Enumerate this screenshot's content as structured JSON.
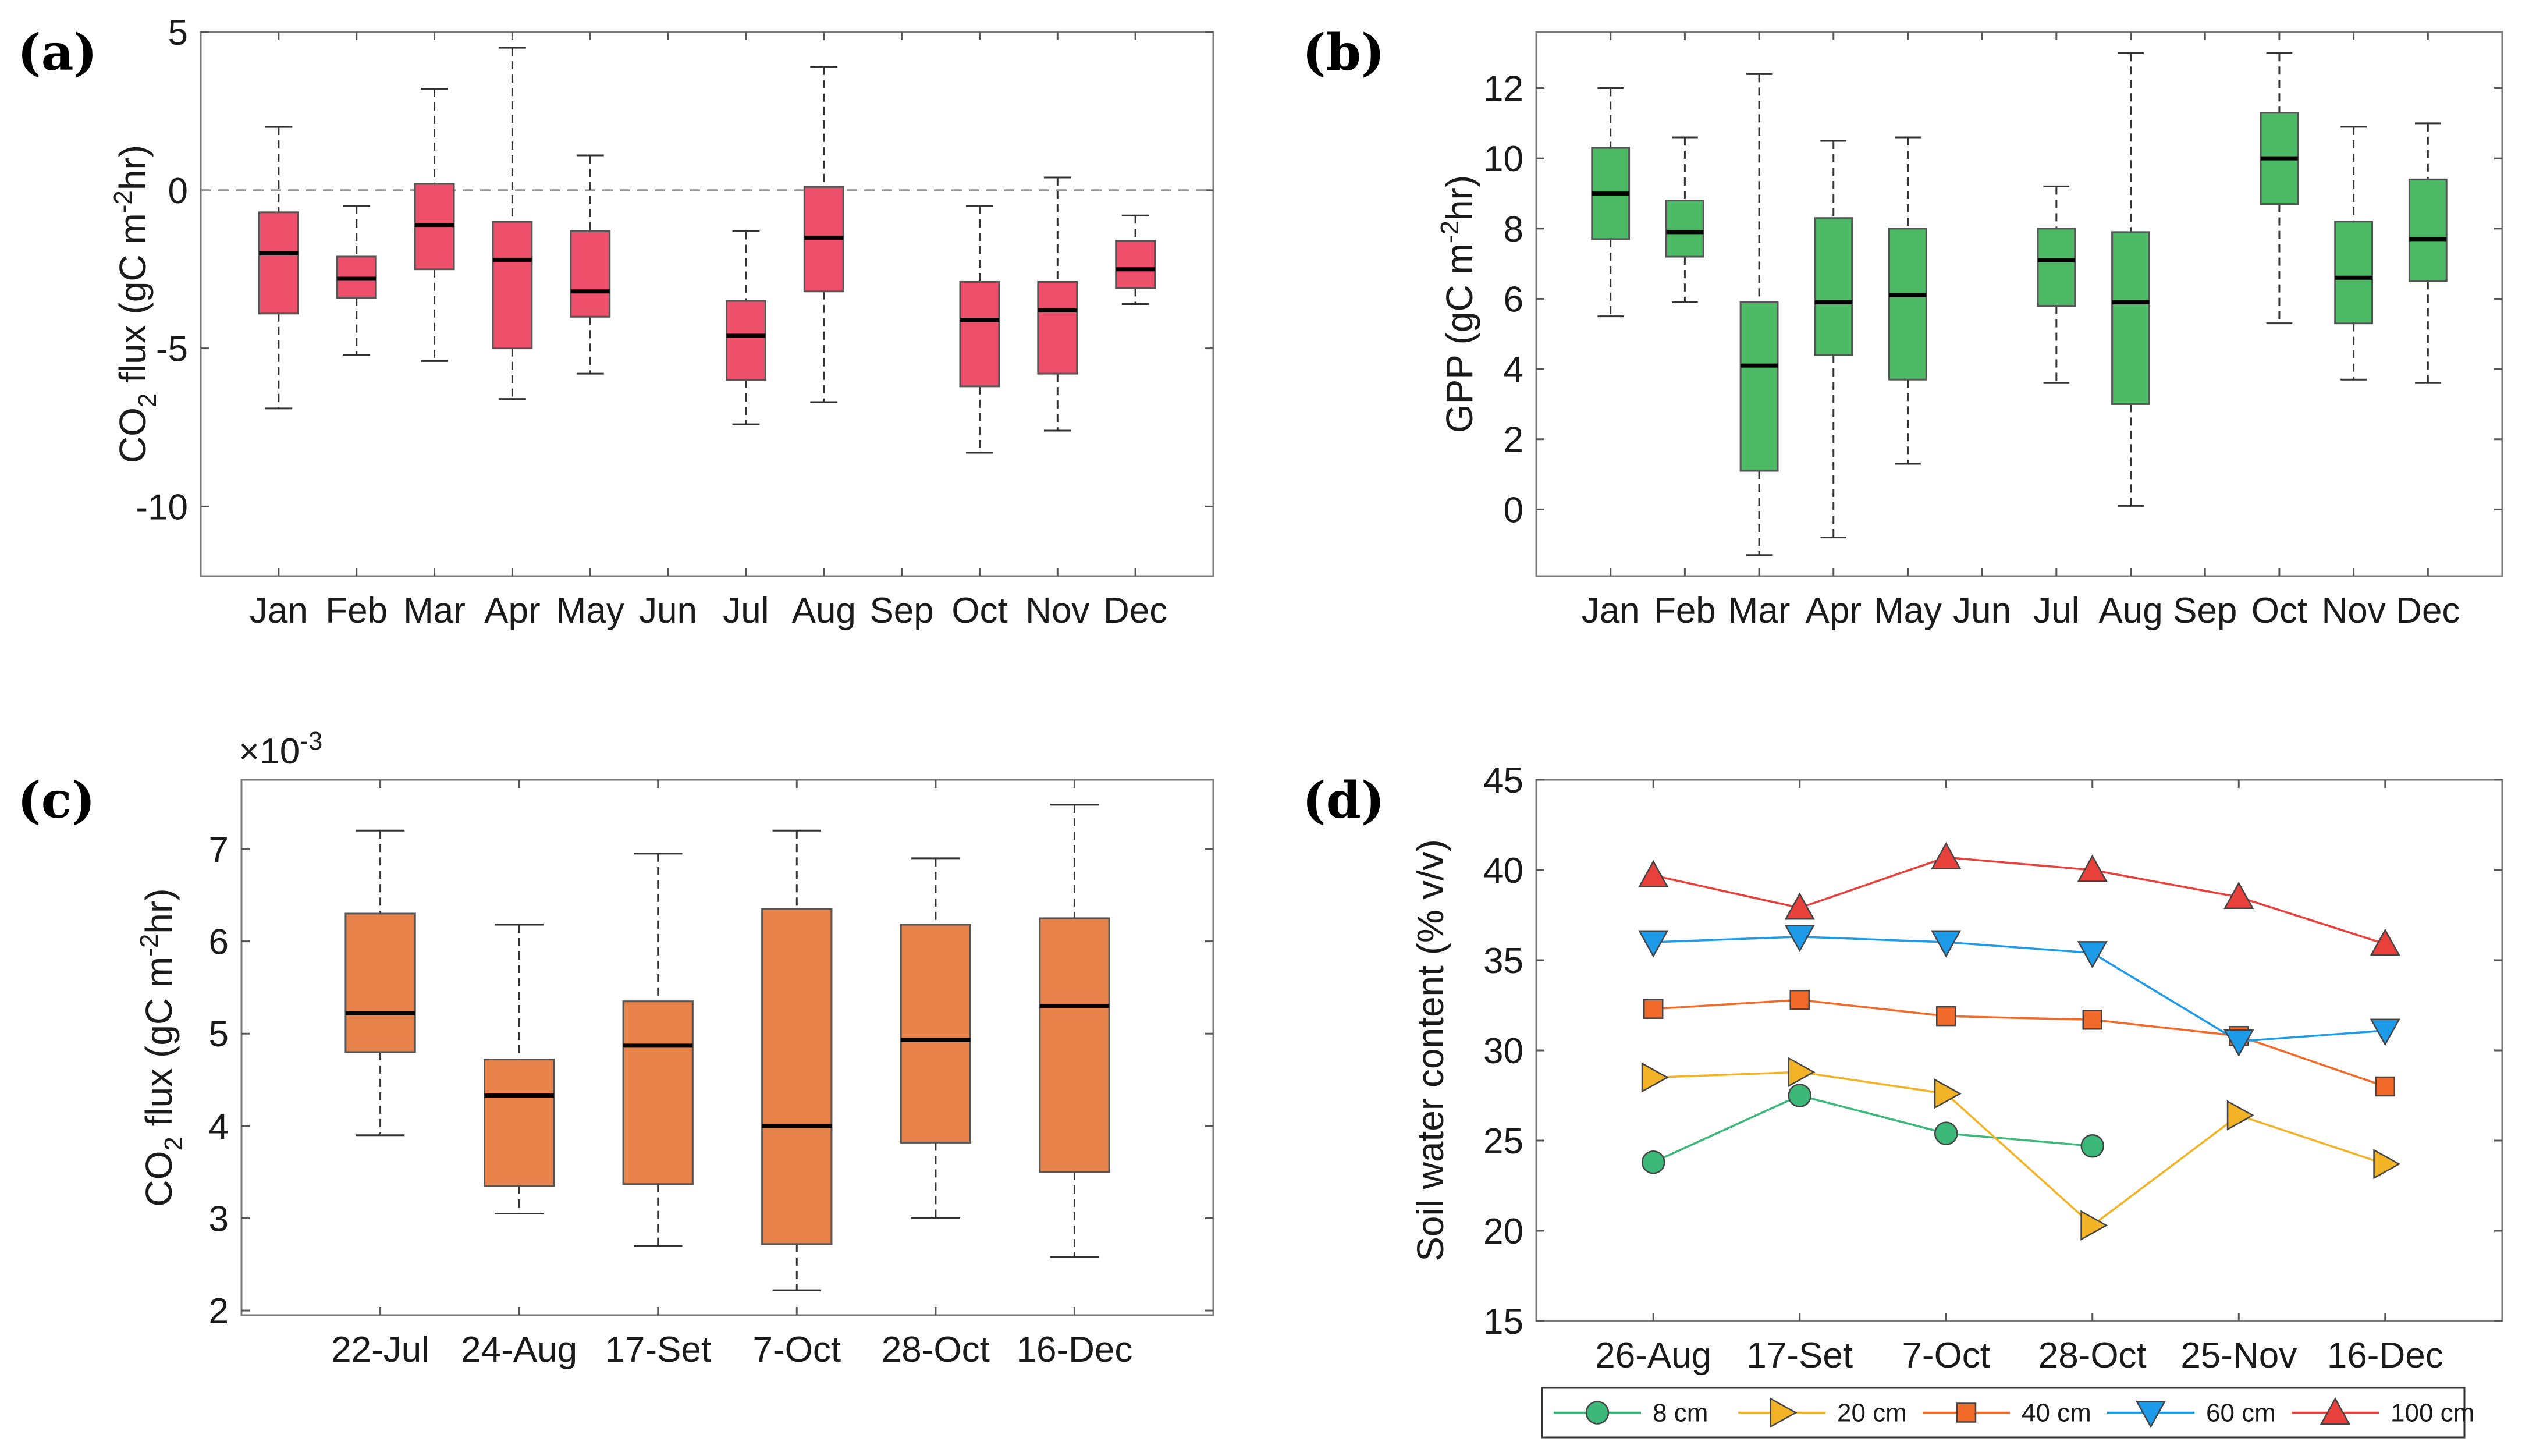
{
  "chart_data": [
    {
      "id": "a",
      "panel_label": "(a)",
      "type": "box",
      "ylabel_pre": "CO",
      "ylabel_sub": "2",
      "ylabel_mid": " flux (gC m",
      "ylabel_sup": "-2",
      "ylabel_post": "hr)",
      "categories": [
        "Jan",
        "Feb",
        "Mar",
        "Apr",
        "May",
        "Jun",
        "Jul",
        "Aug",
        "Sep",
        "Oct",
        "Nov",
        "Dec"
      ],
      "ylim": [
        -12.2,
        5
      ],
      "yticks": [
        5,
        0,
        -5,
        -10
      ],
      "ytick_labels": [
        "5",
        "0",
        "-5",
        "-10"
      ],
      "reference_line": 0,
      "color": "#ee4f6a",
      "boxes": [
        {
          "cat": "Jan",
          "min": -6.9,
          "q1": -3.9,
          "median": -2.0,
          "q3": -0.7,
          "max": 2.0
        },
        {
          "cat": "Feb",
          "min": -5.2,
          "q1": -3.4,
          "median": -2.8,
          "q3": -2.1,
          "max": -0.5
        },
        {
          "cat": "Mar",
          "min": -5.4,
          "q1": -2.5,
          "median": -1.1,
          "q3": 0.2,
          "max": 3.2
        },
        {
          "cat": "Apr",
          "min": -6.6,
          "q1": -5.0,
          "median": -2.2,
          "q3": -1.0,
          "max": 4.5
        },
        {
          "cat": "May",
          "min": -5.8,
          "q1": -4.0,
          "median": -3.2,
          "q3": -1.3,
          "max": 1.1
        },
        {
          "cat": "Jul",
          "min": -7.4,
          "q1": -6.0,
          "median": -4.6,
          "q3": -3.5,
          "max": -1.3
        },
        {
          "cat": "Aug",
          "min": -6.7,
          "q1": -3.2,
          "median": -1.5,
          "q3": 0.1,
          "max": 3.9
        },
        {
          "cat": "Oct",
          "min": -8.3,
          "q1": -6.2,
          "median": -4.1,
          "q3": -2.9,
          "max": -0.5
        },
        {
          "cat": "Nov",
          "min": -7.6,
          "q1": -5.8,
          "median": -3.8,
          "q3": -2.9,
          "max": 0.4
        },
        {
          "cat": "Dec",
          "min": -3.6,
          "q1": -3.1,
          "median": -2.5,
          "q3": -1.6,
          "max": -0.8
        }
      ]
    },
    {
      "id": "b",
      "panel_label": "(b)",
      "type": "box",
      "ylabel_pre": "GPP (gC m",
      "ylabel_sup": "-2",
      "ylabel_post": "hr)",
      "categories": [
        "Jan",
        "Feb",
        "Mar",
        "Apr",
        "May",
        "Jun",
        "Jul",
        "Aug",
        "Sep",
        "Oct",
        "Nov",
        "Dec"
      ],
      "ylim": [
        -1.9,
        13.6
      ],
      "yticks": [
        12,
        10,
        8,
        6,
        4,
        2,
        0
      ],
      "ytick_labels": [
        "12",
        "10",
        "8",
        "6",
        "4",
        "2",
        "0"
      ],
      "color": "#4cb965",
      "boxes": [
        {
          "cat": "Jan",
          "min": 5.5,
          "q1": 7.7,
          "median": 9.0,
          "q3": 10.3,
          "max": 12.0
        },
        {
          "cat": "Feb",
          "min": 5.9,
          "q1": 7.2,
          "median": 7.9,
          "q3": 8.8,
          "max": 10.6
        },
        {
          "cat": "Mar",
          "min": -1.3,
          "q1": 1.1,
          "median": 4.1,
          "q3": 5.9,
          "max": 12.4
        },
        {
          "cat": "Apr",
          "min": -0.8,
          "q1": 4.4,
          "median": 5.9,
          "q3": 8.3,
          "max": 10.5
        },
        {
          "cat": "May",
          "min": 1.3,
          "q1": 3.7,
          "median": 6.1,
          "q3": 8.0,
          "max": 10.6
        },
        {
          "cat": "Jul",
          "min": 3.6,
          "q1": 5.8,
          "median": 7.1,
          "q3": 8.0,
          "max": 9.2
        },
        {
          "cat": "Aug",
          "min": 0.1,
          "q1": 3.0,
          "median": 5.9,
          "q3": 7.9,
          "max": 13.0
        },
        {
          "cat": "Oct",
          "min": 5.3,
          "q1": 8.7,
          "median": 10.0,
          "q3": 11.3,
          "max": 13.0
        },
        {
          "cat": "Nov",
          "min": 3.7,
          "q1": 5.3,
          "median": 6.6,
          "q3": 8.2,
          "max": 10.9
        },
        {
          "cat": "Dec",
          "min": 3.6,
          "q1": 6.5,
          "median": 7.7,
          "q3": 9.4,
          "max": 11.0
        }
      ]
    },
    {
      "id": "c",
      "panel_label": "(c)",
      "type": "box",
      "ylabel_pre": "CO",
      "ylabel_sub": "2",
      "ylabel_mid": " flux (gC m",
      "ylabel_sup": "-2",
      "ylabel_post": "hr)",
      "exponent_prefix": "×10",
      "exponent_power": "-3",
      "categories": [
        "22-Jul",
        "24-Aug",
        "17-Set",
        "7-Oct",
        "28-Oct",
        "16-Dec"
      ],
      "ylim": [
        1.95,
        7.75
      ],
      "yticks": [
        7,
        6,
        5,
        4,
        3,
        2
      ],
      "ytick_labels": [
        "7",
        "6",
        "5",
        "4",
        "3",
        "2"
      ],
      "color": "#e8834b",
      "boxes": [
        {
          "cat": "22-Jul",
          "min": 3.9,
          "q1": 4.8,
          "median": 5.22,
          "q3": 6.3,
          "max": 7.2
        },
        {
          "cat": "24-Aug",
          "min": 3.05,
          "q1": 3.35,
          "median": 4.33,
          "q3": 4.72,
          "max": 6.18
        },
        {
          "cat": "17-Set",
          "min": 2.7,
          "q1": 3.37,
          "median": 4.87,
          "q3": 5.35,
          "max": 6.95
        },
        {
          "cat": "7-Oct",
          "min": 2.22,
          "q1": 2.72,
          "median": 4.0,
          "q3": 6.35,
          "max": 7.2
        },
        {
          "cat": "28-Oct",
          "min": 3.0,
          "q1": 3.82,
          "median": 4.93,
          "q3": 6.18,
          "max": 6.9
        },
        {
          "cat": "16-Dec",
          "min": 2.58,
          "q1": 3.5,
          "median": 5.3,
          "q3": 6.25,
          "max": 7.48
        }
      ]
    },
    {
      "id": "d",
      "panel_label": "(d)",
      "type": "line",
      "ylabel": "Soil water content (% v/v)",
      "x": [
        "26-Aug",
        "17-Set",
        "7-Oct",
        "28-Oct",
        "25-Nov",
        "16-Dec"
      ],
      "ylim": [
        15,
        45
      ],
      "yticks": [
        45,
        40,
        35,
        30,
        25,
        20,
        15
      ],
      "ytick_labels": [
        "45",
        "40",
        "35",
        "30",
        "25",
        "20",
        "15"
      ],
      "legend_position": "bottom",
      "series": [
        {
          "name": "8 cm",
          "color": "#3cb879",
          "marker": "circle",
          "values": [
            23.8,
            27.5,
            25.4,
            24.7,
            null,
            null
          ]
        },
        {
          "name": "20 cm",
          "color": "#f2b426",
          "marker": "triangle-right",
          "values": [
            28.5,
            28.8,
            27.6,
            20.3,
            26.4,
            23.7
          ]
        },
        {
          "name": "40 cm",
          "color": "#f26a2a",
          "marker": "square",
          "values": [
            32.3,
            32.8,
            31.9,
            31.7,
            30.8,
            28.0
          ]
        },
        {
          "name": "60 cm",
          "color": "#1e9be8",
          "marker": "triangle-down",
          "values": [
            36.0,
            36.3,
            36.0,
            35.4,
            30.5,
            31.1
          ]
        },
        {
          "name": "100 cm",
          "color": "#e8403b",
          "marker": "triangle-up",
          "values": [
            39.7,
            37.9,
            40.7,
            40.0,
            38.5,
            35.9
          ]
        }
      ]
    }
  ]
}
